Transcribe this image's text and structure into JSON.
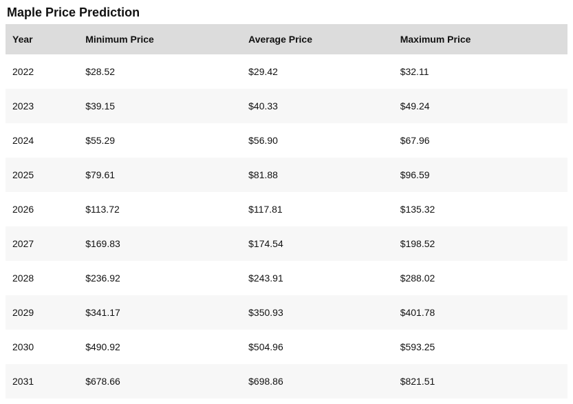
{
  "title": "Maple Price Prediction",
  "table": {
    "columns": [
      {
        "key": "year",
        "label": "Year"
      },
      {
        "key": "min",
        "label": "Minimum Price"
      },
      {
        "key": "avg",
        "label": "Average Price"
      },
      {
        "key": "max",
        "label": "Maximum Price"
      }
    ],
    "rows": [
      {
        "year": "2022",
        "min": "$28.52",
        "avg": "$29.42",
        "max": "$32.11"
      },
      {
        "year": "2023",
        "min": "$39.15",
        "avg": "$40.33",
        "max": "$49.24"
      },
      {
        "year": "2024",
        "min": "$55.29",
        "avg": "$56.90",
        "max": "$67.96"
      },
      {
        "year": "2025",
        "min": "$79.61",
        "avg": "$81.88",
        "max": "$96.59"
      },
      {
        "year": "2026",
        "min": "$113.72",
        "avg": "$117.81",
        "max": "$135.32"
      },
      {
        "year": "2027",
        "min": "$169.83",
        "avg": "$174.54",
        "max": "$198.52"
      },
      {
        "year": "2028",
        "min": "$236.92",
        "avg": "$243.91",
        "max": "$288.02"
      },
      {
        "year": "2029",
        "min": "$341.17",
        "avg": "$350.93",
        "max": "$401.78"
      },
      {
        "year": "2030",
        "min": "$490.92",
        "avg": "$504.96",
        "max": "$593.25"
      },
      {
        "year": "2031",
        "min": "$678.66",
        "avg": "$698.86",
        "max": "$821.51"
      }
    ],
    "header_bg": "#dcdcdc",
    "row_odd_bg": "#ffffff",
    "row_even_bg": "#f7f7f7",
    "text_color": "#111111",
    "font_size_header": 14,
    "font_size_body": 14,
    "col_widths_pct": [
      13,
      29,
      27,
      31
    ]
  }
}
